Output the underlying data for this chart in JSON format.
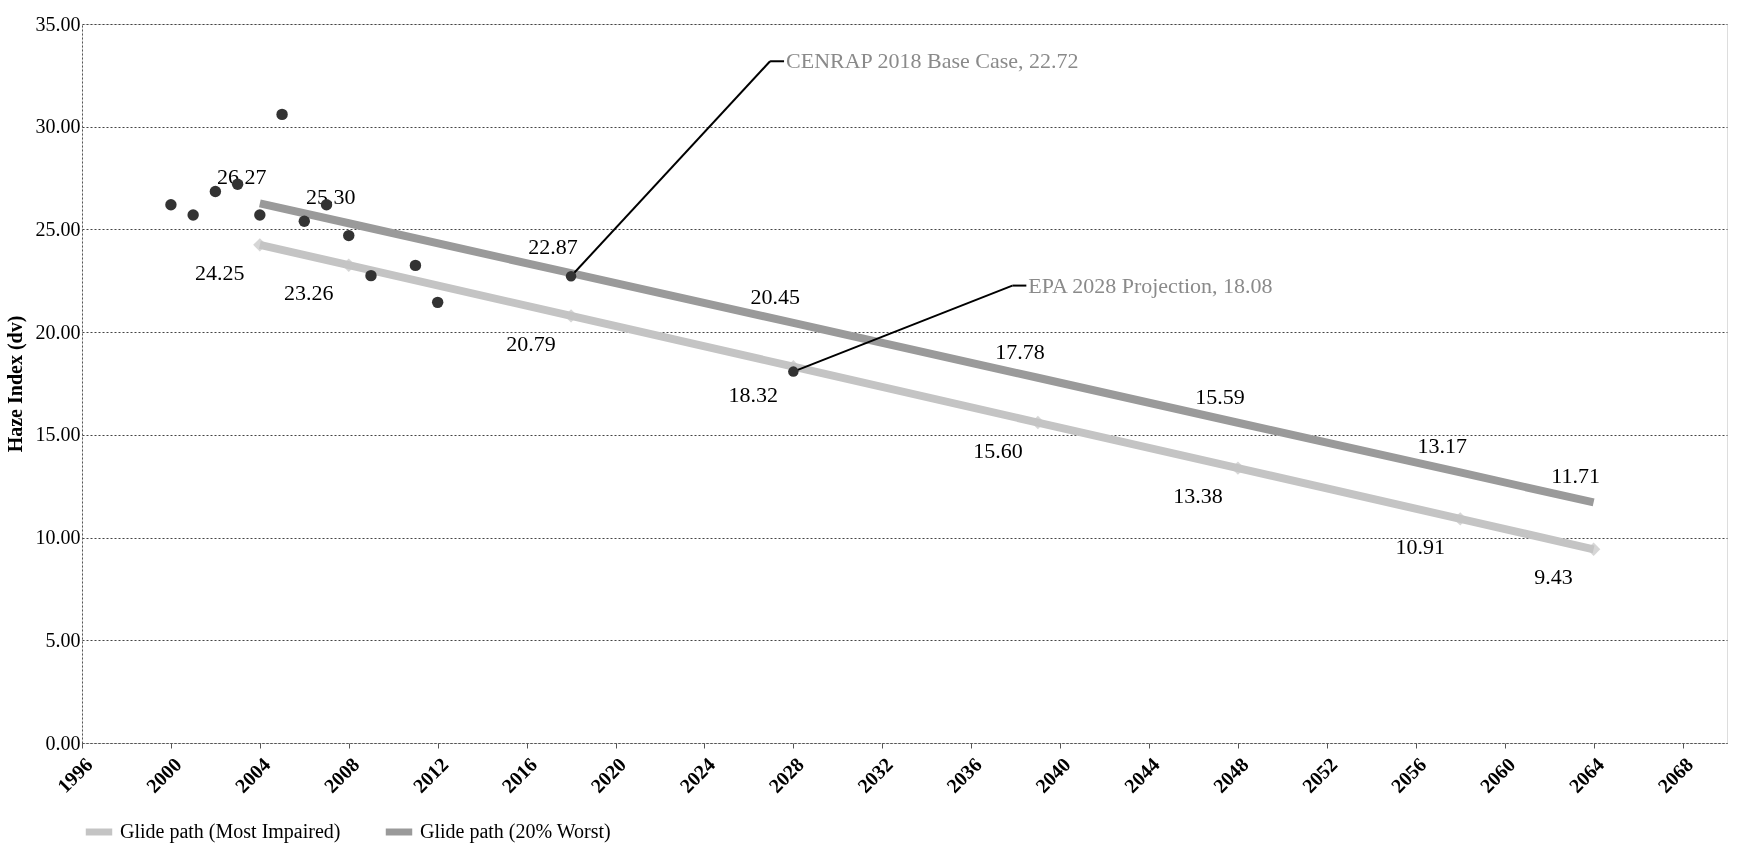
{
  "chart_data": {
    "type": "line",
    "ylabel": "Haze Index (dv)",
    "xlim": [
      1996,
      2070
    ],
    "xticks": [
      1996,
      2000,
      2004,
      2008,
      2012,
      2016,
      2020,
      2024,
      2028,
      2032,
      2036,
      2040,
      2044,
      2048,
      2052,
      2056,
      2060,
      2064,
      2068
    ],
    "ylim": [
      0,
      35
    ],
    "yticks": [
      {
        "value": 0,
        "label": "0.00"
      },
      {
        "value": 5,
        "label": "5.00"
      },
      {
        "value": 10,
        "label": "10.00"
      },
      {
        "value": 15,
        "label": "15.00"
      },
      {
        "value": 20,
        "label": "20.00"
      },
      {
        "value": 25,
        "label": "25.00"
      },
      {
        "value": 30,
        "label": "30.00"
      },
      {
        "value": 35,
        "label": "35.00"
      }
    ],
    "grid": "y",
    "legend": "bottom",
    "series": [
      {
        "name": "Glide path (Most Impaired)",
        "color": "#c4c4c4",
        "marker": "diamond",
        "x": [
          2004,
          2008,
          2018,
          2028,
          2039,
          2048,
          2058,
          2064
        ],
        "values": [
          24.25,
          23.26,
          20.79,
          18.32,
          15.6,
          13.38,
          10.91,
          9.43
        ],
        "value_labels": [
          "24.25",
          "23.26",
          "20.79",
          "18.32",
          "15.60",
          "13.38",
          "10.91",
          "9.43"
        ]
      },
      {
        "name": "Glide path (20% Worst)",
        "color": "#9a9a9a",
        "marker": "none",
        "x": [
          2004,
          2008,
          2018,
          2028,
          2039,
          2048,
          2058,
          2064
        ],
        "values": [
          26.27,
          25.3,
          22.87,
          20.45,
          17.78,
          15.59,
          13.17,
          11.71
        ],
        "value_labels": [
          "26.27",
          "25.30",
          "22.87",
          "20.45",
          "17.78",
          "15.59",
          "13.17",
          "11.71"
        ]
      },
      {
        "type": "scatter",
        "color": "#333333",
        "marker": "circle",
        "x": [
          2000,
          2001,
          2002,
          2003,
          2004,
          2005,
          2006,
          2007,
          2008,
          2009,
          2011,
          2012
        ],
        "values": [
          26.2,
          25.7,
          26.85,
          27.2,
          25.7,
          30.6,
          25.4,
          26.2,
          24.7,
          22.75,
          23.25,
          21.45
        ]
      }
    ],
    "annotations": [
      {
        "text": "CENRAP 2018 Base Case, 22.72",
        "x": 2018,
        "y": 22.72
      },
      {
        "text": "EPA 2028 Projection, 18.08",
        "x": 2028,
        "y": 18.08
      }
    ]
  }
}
